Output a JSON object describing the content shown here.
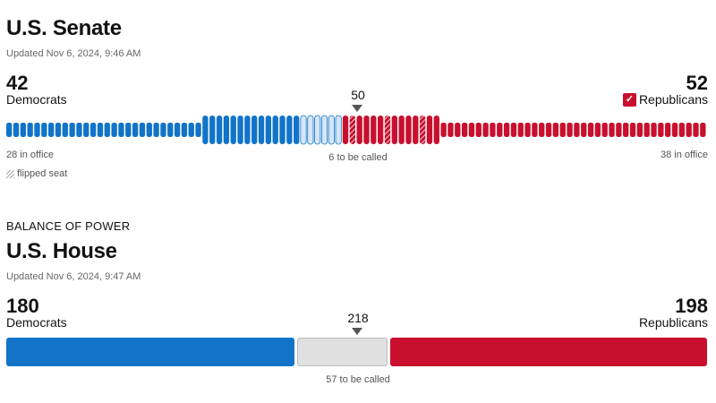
{
  "senate": {
    "title": "U.S. Senate",
    "updated": "Updated Nov 6, 2024, 9:46 AM",
    "dem": {
      "count": "42",
      "label": "Democrats",
      "in_office": "28 in office"
    },
    "rep": {
      "count": "52",
      "label": "Republicans",
      "in_office": "38 in office",
      "called_icon": "checkmark-icon"
    },
    "majority": "50",
    "to_be_called": "6 to be called",
    "legend": {
      "icon": "hatched-swatch-icon",
      "label": "flipped seat"
    },
    "seats": {
      "dem_in_office": 28,
      "dem_won": 14,
      "pending": 6,
      "rep_won": 14,
      "rep_in_office": 38,
      "rep_flipped": 3
    }
  },
  "house": {
    "kicker": "BALANCE OF POWER",
    "title": "U.S. House",
    "updated": "Updated Nov 6, 2024, 9:47 AM",
    "dem": {
      "count": "180",
      "label": "Democrats"
    },
    "rep": {
      "count": "198",
      "label": "Republicans"
    },
    "majority": "218",
    "to_be_called": "57 to be called",
    "seats": {
      "dem": 180,
      "pending": 57,
      "rep": 198,
      "total": 435
    }
  },
  "colors": {
    "dem": "#1174c9",
    "rep": "#c8102e",
    "dem_light": "#d6e6f5",
    "pending": "#e0e0e0"
  }
}
